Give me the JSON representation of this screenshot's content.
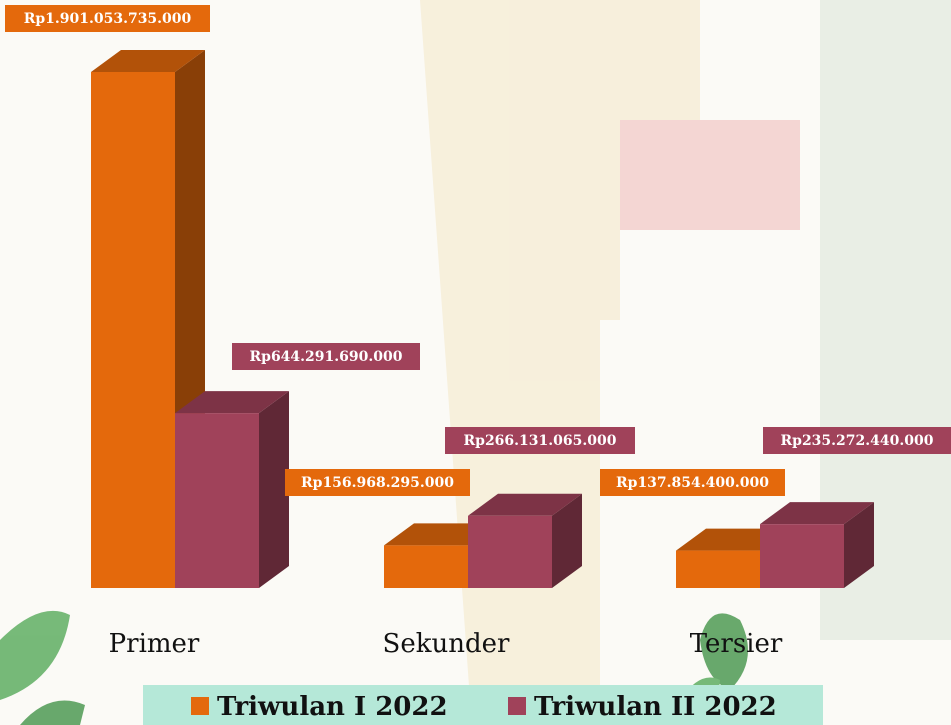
{
  "chart_data": {
    "type": "bar3d",
    "categories": [
      "Primer",
      "Sekunder",
      "Tersier"
    ],
    "series": [
      {
        "name": "Triwulan I 2022",
        "color": "#e4690c",
        "values": [
          1901053735000,
          156968295000,
          137854400000
        ],
        "value_labels": [
          "Rp1.901.053.735.000",
          "Rp156.968.295.000",
          "Rp137.854.400.000"
        ]
      },
      {
        "name": "Triwulan II 2022",
        "color": "#a0425a",
        "values": [
          644291690000,
          266131065000,
          235272440000
        ],
        "value_labels": [
          "Rp644.291.690.000",
          "Rp266.131.065.000",
          "Rp235.272.440.000"
        ]
      }
    ],
    "legend": "bottom"
  }
}
